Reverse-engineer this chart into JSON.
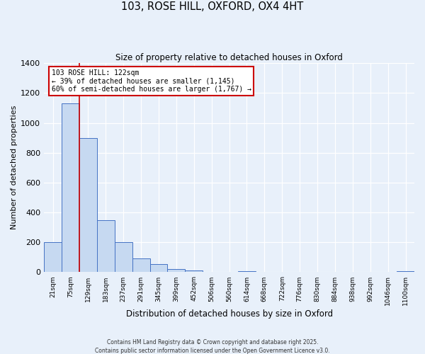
{
  "title": "103, ROSE HILL, OXFORD, OX4 4HT",
  "subtitle": "Size of property relative to detached houses in Oxford",
  "xlabel": "Distribution of detached houses by size in Oxford",
  "ylabel": "Number of detached properties",
  "bar_labels": [
    "21sqm",
    "75sqm",
    "129sqm",
    "183sqm",
    "237sqm",
    "291sqm",
    "345sqm",
    "399sqm",
    "452sqm",
    "506sqm",
    "560sqm",
    "614sqm",
    "668sqm",
    "722sqm",
    "776sqm",
    "830sqm",
    "884sqm",
    "938sqm",
    "992sqm",
    "1046sqm",
    "1100sqm"
  ],
  "bar_values": [
    200,
    1130,
    900,
    350,
    200,
    90,
    55,
    20,
    10,
    0,
    0,
    5,
    0,
    0,
    0,
    0,
    0,
    0,
    0,
    0,
    5
  ],
  "bar_color": "#c6d9f1",
  "bar_edge_color": "#4472c4",
  "ylim": [
    0,
    1400
  ],
  "yticks": [
    0,
    200,
    400,
    600,
    800,
    1000,
    1200,
    1400
  ],
  "marker_label": "103 ROSE HILL: 122sqm",
  "annotation_line1": "← 39% of detached houses are smaller (1,145)",
  "annotation_line2": "60% of semi-detached houses are larger (1,767) →",
  "box_color": "#ffffff",
  "box_edge_color": "#cc0000",
  "marker_line_color": "#cc0000",
  "background_color": "#e8f0fa",
  "footer1": "Contains HM Land Registry data © Crown copyright and database right 2025.",
  "footer2": "Contains public sector information licensed under the Open Government Licence v3.0."
}
